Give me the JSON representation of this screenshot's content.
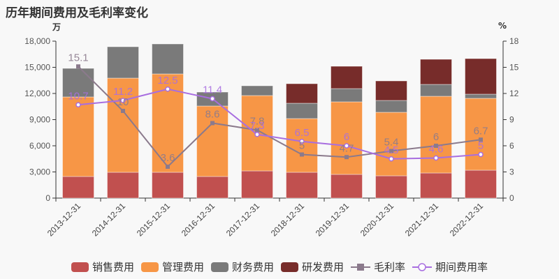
{
  "title": "历年期间费用及毛利率变化",
  "left_axis_unit": "万",
  "right_axis_unit": "%",
  "colors": {
    "sales": "#c1504f",
    "mgmt": "#f79646",
    "finance": "#7a7a7a",
    "rd": "#772c2a",
    "gross_margin": "#8b7a8c",
    "expense_rate": "#a86ee0",
    "background": "#f8f8f8"
  },
  "legend": [
    {
      "label": "销售费用",
      "type": "bar",
      "color": "#c1504f"
    },
    {
      "label": "管理费用",
      "type": "bar",
      "color": "#f79646"
    },
    {
      "label": "财务费用",
      "type": "bar",
      "color": "#7a7a7a"
    },
    {
      "label": "研发费用",
      "type": "bar",
      "color": "#772c2a"
    },
    {
      "label": "毛利率",
      "type": "line-square",
      "color": "#8b7a8c"
    },
    {
      "label": "期间费用率",
      "type": "line-circle",
      "color": "#a86ee0"
    }
  ],
  "chart_data": {
    "type": "bar",
    "title": "历年期间费用及毛利率变化",
    "xlabel": "",
    "ylabel": "万",
    "ylabel_right": "%",
    "ylim": [
      0,
      18000
    ],
    "ylim_right": [
      0,
      18
    ],
    "yticks": [
      "0",
      "3,000",
      "6,000",
      "9,000",
      "12,000",
      "15,000",
      "18,000"
    ],
    "yticks_right": [
      "0",
      "3",
      "6",
      "9",
      "12",
      "15",
      "18"
    ],
    "grid": false,
    "legend_position": "bottom",
    "stacked": true,
    "categories": [
      "2013-12-31",
      "2014-12-31",
      "2015-12-31",
      "2016-12-31",
      "2017-12-31",
      "2018-12-31",
      "2019-12-31",
      "2020-12-31",
      "2021-12-31",
      "2022-12-31"
    ],
    "series": [
      {
        "name": "销售费用",
        "type": "bar",
        "axis": "left",
        "values": [
          2480,
          2960,
          2960,
          2480,
          3120,
          2960,
          2720,
          2560,
          2880,
          3200
        ]
      },
      {
        "name": "管理费用",
        "type": "bar",
        "axis": "left",
        "values": [
          9120,
          10800,
          11280,
          8080,
          8640,
          6160,
          8320,
          7280,
          8800,
          8240
        ]
      },
      {
        "name": "财务费用",
        "type": "bar",
        "axis": "left",
        "values": [
          3280,
          3600,
          3440,
          1600,
          1120,
          1760,
          1520,
          1360,
          1360,
          480
        ]
      },
      {
        "name": "研发费用",
        "type": "bar",
        "axis": "left",
        "values": [
          0,
          0,
          0,
          0,
          0,
          2240,
          2560,
          2240,
          2880,
          4080
        ]
      },
      {
        "name": "毛利率",
        "type": "line",
        "axis": "right",
        "values": [
          15.1,
          10,
          3.6,
          8.6,
          7.8,
          5,
          4.7,
          5.4,
          6,
          6.7
        ]
      },
      {
        "name": "期间费用率",
        "type": "line",
        "axis": "right",
        "values": [
          10.7,
          11.2,
          12.5,
          11.4,
          7.3,
          6.5,
          6,
          4.5,
          4.6,
          5
        ]
      }
    ]
  }
}
